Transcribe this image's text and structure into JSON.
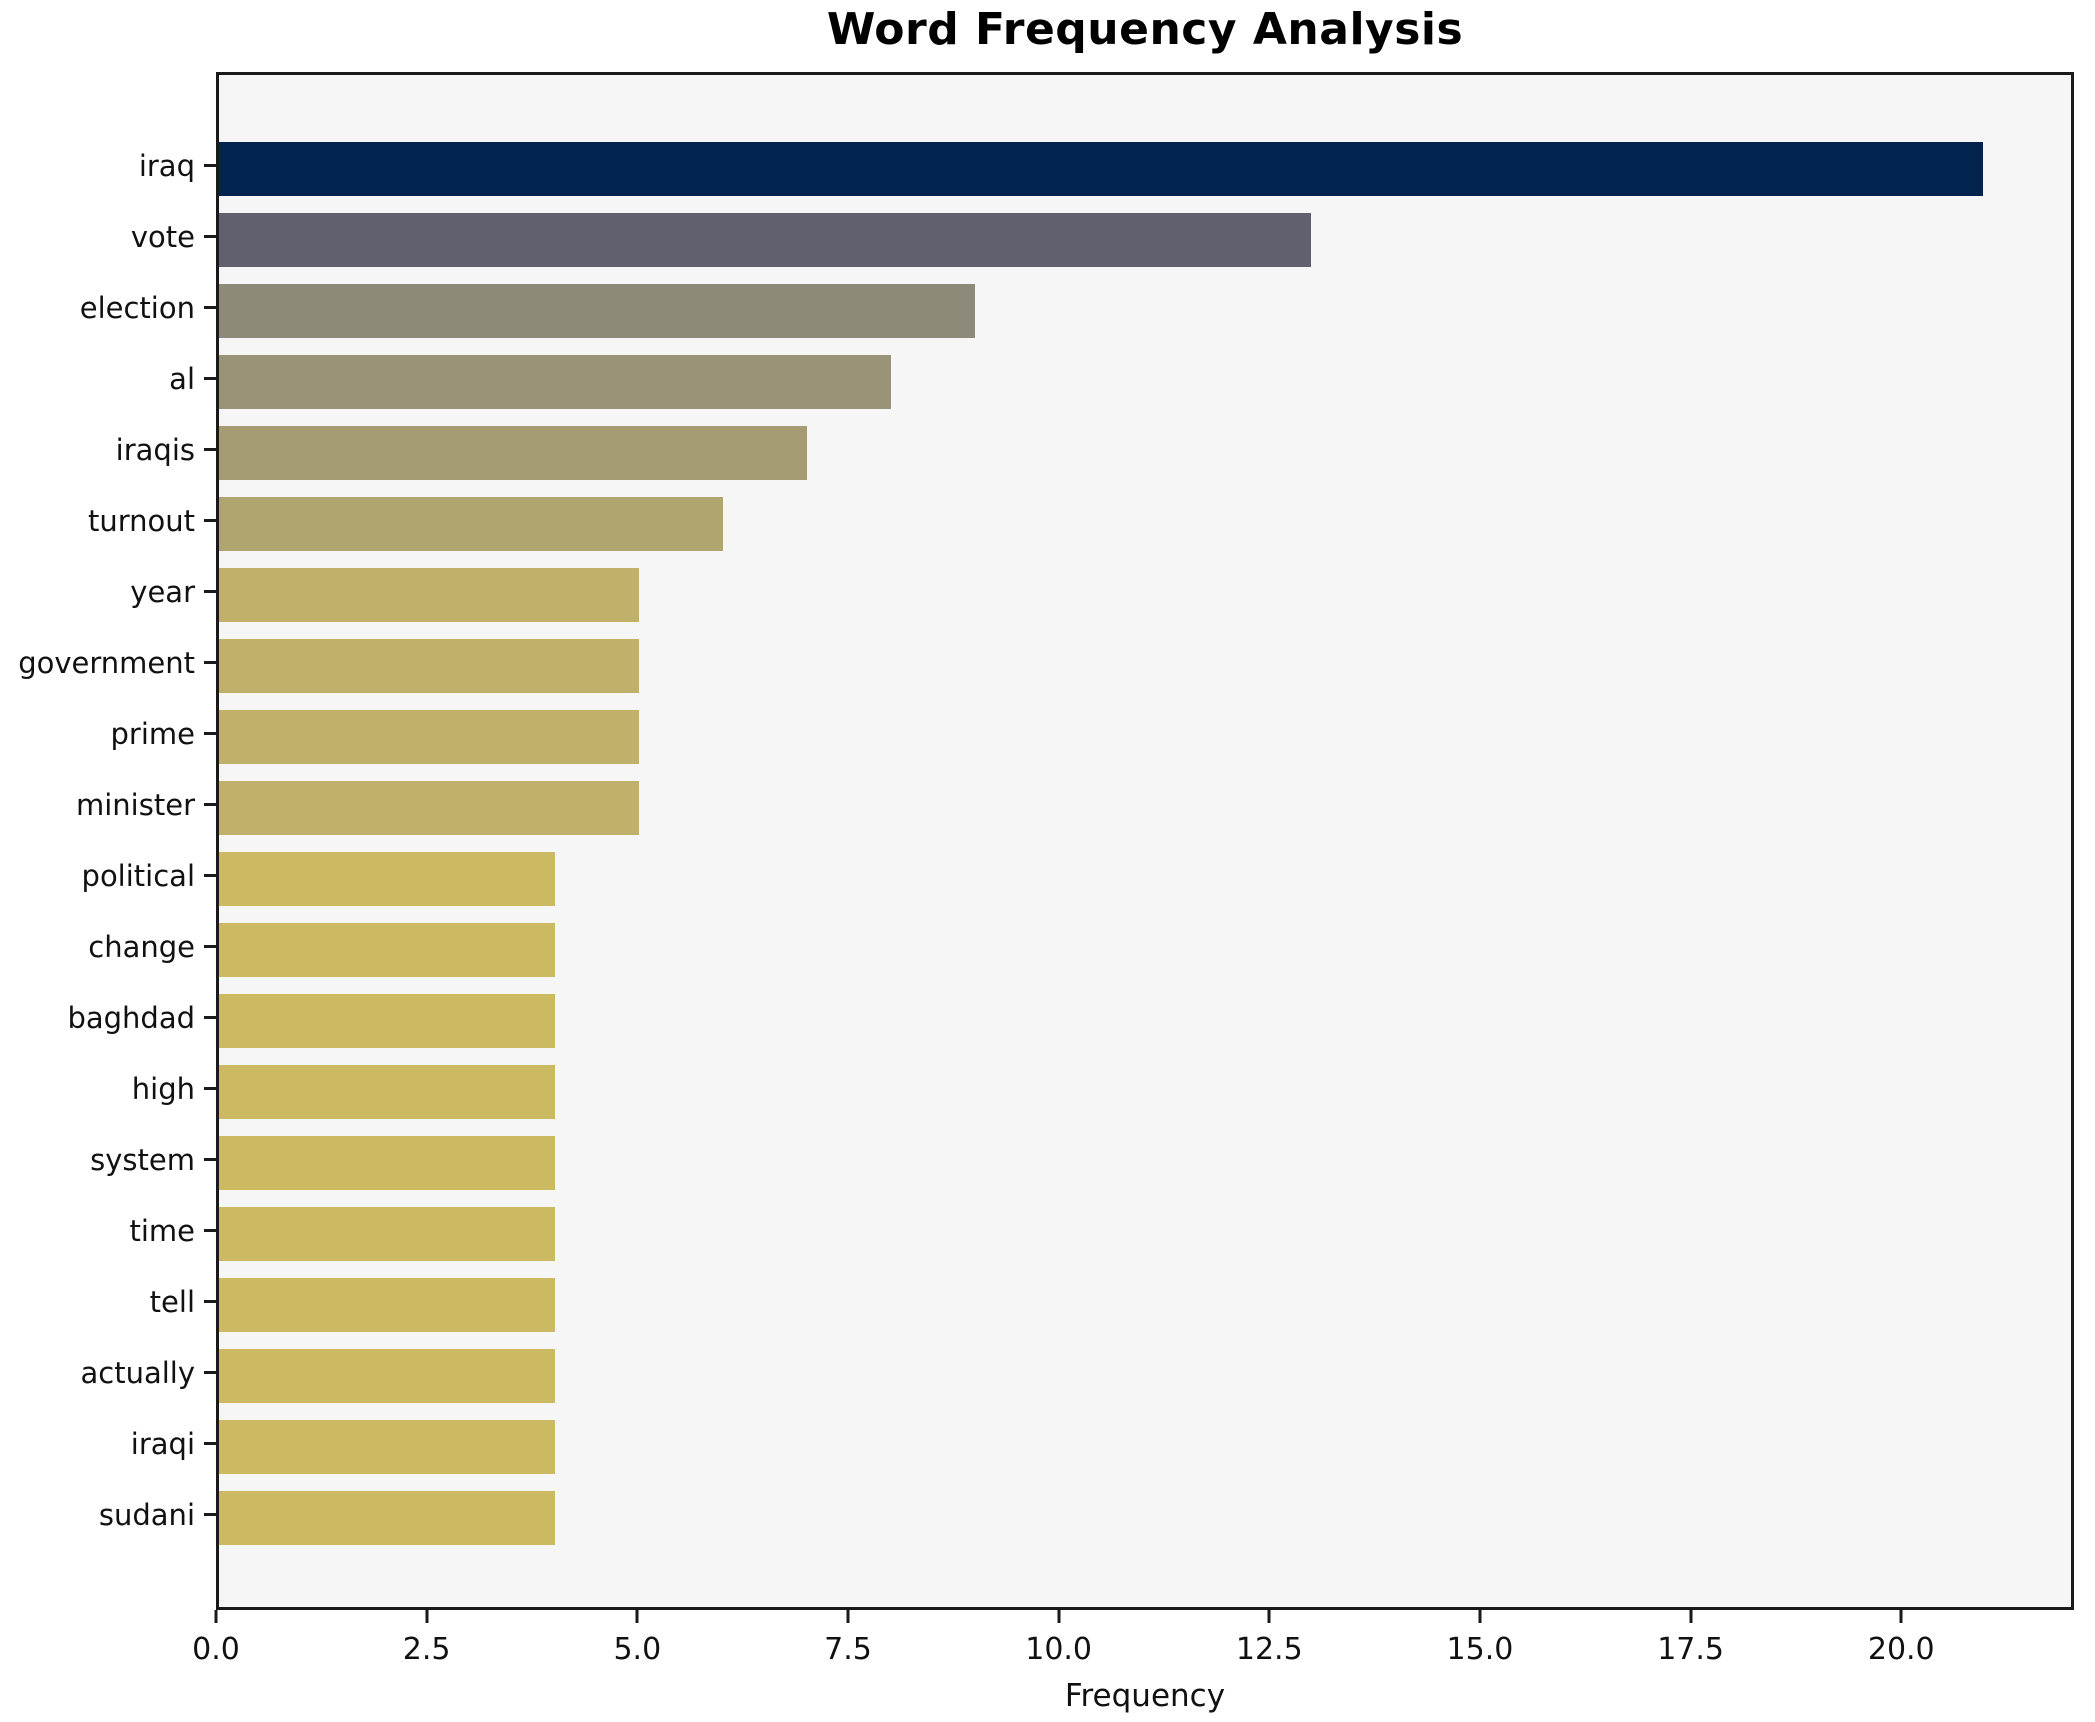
{
  "figure": {
    "title": "Word Frequency Analysis",
    "xlabel": "Frequency"
  },
  "chart_data": {
    "type": "bar",
    "orientation": "horizontal",
    "title": "Word Frequency Analysis",
    "xlabel": "Frequency",
    "ylabel": "",
    "categories": [
      "iraq",
      "vote",
      "election",
      "al",
      "iraqis",
      "turnout",
      "year",
      "government",
      "prime",
      "minister",
      "political",
      "change",
      "baghdad",
      "high",
      "system",
      "time",
      "tell",
      "actually",
      "iraqi",
      "sudani"
    ],
    "values": [
      21,
      13,
      9,
      8,
      7,
      6,
      5,
      5,
      5,
      5,
      4,
      4,
      4,
      4,
      4,
      4,
      4,
      4,
      4,
      4
    ],
    "bar_colors": [
      "#02234d",
      "#5f616e",
      "#8e8a79",
      "#999477",
      "#a59c74",
      "#b0a56e",
      "#c0b069",
      "#c0b069",
      "#c0b069",
      "#c0b069",
      "#cbba61",
      "#cbba61",
      "#cbba61",
      "#cbba61",
      "#cbba61",
      "#cbba61",
      "#cbba61",
      "#cbba61",
      "#cbba61",
      "#cbba61"
    ],
    "xlim": [
      0,
      22.05
    ],
    "xticks": [
      0.0,
      2.5,
      5.0,
      7.5,
      10.0,
      12.5,
      15.0,
      17.5,
      20.0
    ],
    "xtick_labels": [
      "0.0",
      "2.5",
      "5.0",
      "7.5",
      "10.0",
      "12.5",
      "15.0",
      "17.5",
      "20.0"
    ],
    "grid": false,
    "legend_position": "none",
    "plot_bg": "#f6f6f7",
    "fig_bg": "#ffffff",
    "spine_color": "#1a1a1a"
  }
}
